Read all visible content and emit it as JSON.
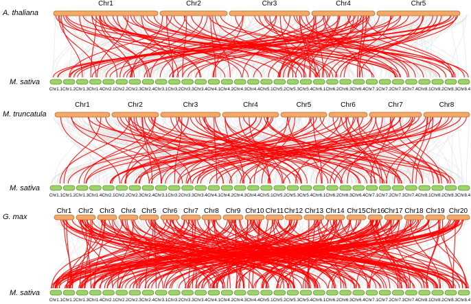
{
  "colors": {
    "background_link": "#d9d9d9",
    "highlight_link": "#ff0000",
    "top_chromosome_fill": "#f2a868",
    "top_chromosome_stroke": "#b06a2a",
    "bottom_chromosome_fill": "#9ed36a",
    "bottom_chromosome_stroke": "#5d8f2f"
  },
  "panels": [
    {
      "top_species": "A. thaliana",
      "bottom_species": "M. sativa",
      "top_chromosomes": [
        "Chr1",
        "Chr2",
        "Chr3",
        "Chr4",
        "Chr5"
      ]
    },
    {
      "top_species": "M. truncatula",
      "bottom_species": "M. sativa",
      "top_chromosomes": [
        "Chr1",
        "Chr2",
        "Chr3",
        "Chr4",
        "Chr5",
        "Chr6",
        "Chr7",
        "Chr8"
      ]
    },
    {
      "top_species": "G. max",
      "bottom_species": "M. sativa",
      "top_chromosomes": [
        "Chr1",
        "Chr2",
        "Chr3",
        "Chr4",
        "Chr5",
        "Chr6",
        "Chr7",
        "Chr8",
        "Chr9",
        "Chr10",
        "Chr11",
        "Chr12",
        "Chr13",
        "Chr14",
        "Chr15",
        "Chr16",
        "Chr17",
        "Chr18",
        "Chr19",
        "Chr20"
      ]
    }
  ],
  "m_sativa_chromosomes": [
    "Chr1.1",
    "Chr1.2",
    "Chr1.3",
    "Chr1.4",
    "Chr2.1",
    "Chr2.2",
    "Chr2.3",
    "Chr2.4",
    "Chr3.1",
    "Chr3.2",
    "Chr3.3",
    "Chr3.4",
    "Chr4.1",
    "Chr4.2",
    "Chr4.3",
    "Chr4.4",
    "Chr5.1",
    "Chr5.2",
    "Chr5.3",
    "Chr5.4",
    "Chr6.1",
    "Chr6.2",
    "Chr6.3",
    "Chr6.4",
    "Chr7.1",
    "Chr7.2",
    "Chr7.3",
    "Chr7.4",
    "Chr8.1",
    "Chr8.2",
    "Chr8.3",
    "Chr8.4"
  ]
}
